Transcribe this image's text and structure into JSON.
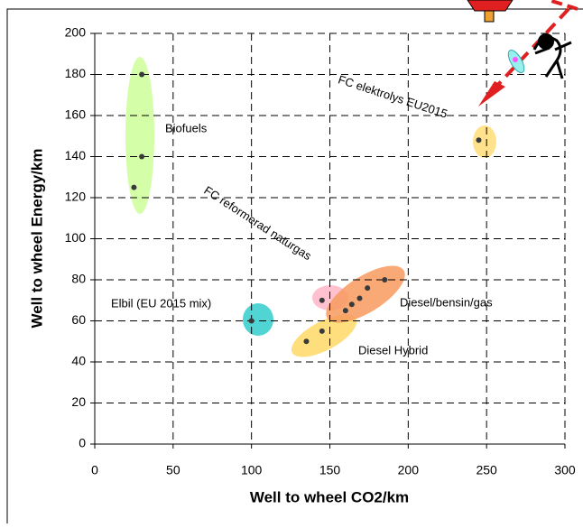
{
  "chart_data": {
    "type": "scatter",
    "x_label": "Well to wheel CO2/km",
    "y_label": "Well to wheel Energy/km",
    "xlim": [
      0,
      300
    ],
    "xticks": [
      0,
      50,
      100,
      150,
      200,
      250,
      300
    ],
    "ylim": [
      0,
      200
    ],
    "yticks": [
      0,
      20,
      40,
      60,
      80,
      100,
      120,
      140,
      160,
      180,
      200
    ],
    "grid": true,
    "marker_color": "#3a3a3a",
    "series": [
      {
        "name": "Biofuels",
        "color": "#ccff99",
        "x": [
          30,
          30,
          25
        ],
        "values": [
          180,
          140,
          125
        ]
      },
      {
        "name": "FC elektrolys EU2015",
        "color": "#ffdd77",
        "x": [
          245
        ],
        "values": [
          148
        ]
      },
      {
        "name": "Elbil (EU 2015 mix)",
        "color": "#33cccc",
        "x": [
          100
        ],
        "values": [
          60
        ]
      },
      {
        "name": "Diesel Hybrid",
        "color": "#ffd966",
        "x": [
          135,
          145
        ],
        "values": [
          50,
          55
        ]
      },
      {
        "name": "FC reformerad naturgas",
        "color": "#ffb6c8",
        "x": [
          145
        ],
        "values": [
          70
        ]
      },
      {
        "name": "Diesel/bensin/gas",
        "color": "#f79a5e",
        "x": [
          160,
          164,
          169,
          174,
          185
        ],
        "values": [
          65,
          68,
          71,
          76,
          80
        ]
      }
    ]
  }
}
